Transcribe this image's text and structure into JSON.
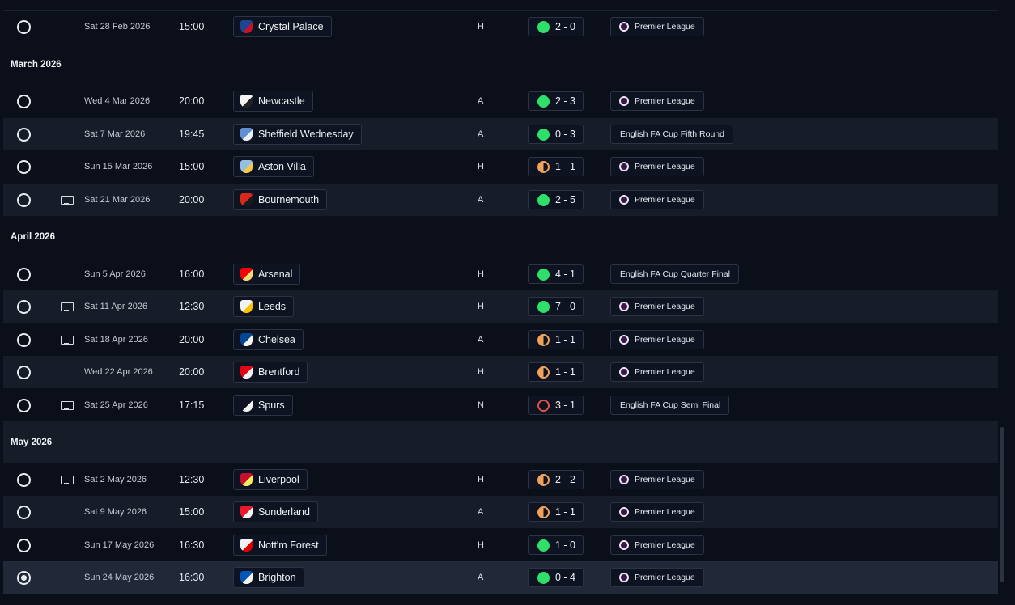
{
  "months": [
    {
      "title": "",
      "matches": [
        {
          "selected": false,
          "tv": false,
          "date": "Sat 28 Feb 2026",
          "time": "15:00",
          "opponent": "Crystal Palace",
          "crest": [
            "#1b458f",
            "#c4122e"
          ],
          "venue": "H",
          "outcome": "win",
          "score": "2 - 0",
          "competition": "Premier League",
          "pl": true
        }
      ]
    },
    {
      "title": "March 2026",
      "matches": [
        {
          "selected": false,
          "tv": false,
          "date": "Wed 4 Mar 2026",
          "time": "20:00",
          "opponent": "Newcastle",
          "crest": [
            "#f4f4f4",
            "#222222"
          ],
          "venue": "A",
          "outcome": "win",
          "score": "2 - 3",
          "competition": "Premier League",
          "pl": true
        },
        {
          "selected": false,
          "tv": false,
          "date": "Sat 7 Mar 2026",
          "time": "19:45",
          "opponent": "Sheffield Wednesday",
          "crest": [
            "#5f8fd0",
            "#e9edf5"
          ],
          "venue": "A",
          "outcome": "win",
          "score": "0 - 3",
          "competition": "English FA Cup Fifth Round",
          "pl": false
        },
        {
          "selected": false,
          "tv": false,
          "date": "Sun 15 Mar 2026",
          "time": "15:00",
          "opponent": "Aston Villa",
          "crest": [
            "#95bfe5",
            "#f2c94c"
          ],
          "venue": "H",
          "outcome": "draw",
          "score": "1 - 1",
          "competition": "Premier League",
          "pl": true
        },
        {
          "selected": false,
          "tv": true,
          "date": "Sat 21 Mar 2026",
          "time": "20:00",
          "opponent": "Bournemouth",
          "crest": [
            "#da291c",
            "#1a1a1a"
          ],
          "venue": "A",
          "outcome": "win",
          "score": "2 - 5",
          "competition": "Premier League",
          "pl": true
        }
      ]
    },
    {
      "title": "April 2026",
      "matches": [
        {
          "selected": false,
          "tv": false,
          "date": "Sun 5 Apr 2026",
          "time": "16:00",
          "opponent": "Arsenal",
          "crest": [
            "#ef0107",
            "#f6d87a"
          ],
          "venue": "H",
          "outcome": "win",
          "score": "4 - 1",
          "competition": "English FA Cup Quarter Final",
          "pl": false
        },
        {
          "selected": false,
          "tv": true,
          "date": "Sat 11 Apr 2026",
          "time": "12:30",
          "opponent": "Leeds",
          "crest": [
            "#f3f3f3",
            "#f7c400"
          ],
          "venue": "H",
          "outcome": "win",
          "score": "7 - 0",
          "competition": "Premier League",
          "pl": true
        },
        {
          "selected": false,
          "tv": true,
          "date": "Sat 18 Apr 2026",
          "time": "20:00",
          "opponent": "Chelsea",
          "crest": [
            "#034694",
            "#f5f5f5"
          ],
          "venue": "A",
          "outcome": "draw",
          "score": "1 - 1",
          "competition": "Premier League",
          "pl": true
        },
        {
          "selected": false,
          "tv": false,
          "date": "Wed 22 Apr 2026",
          "time": "20:00",
          "opponent": "Brentford",
          "crest": [
            "#e30613",
            "#f4f4f4"
          ],
          "venue": "H",
          "outcome": "draw",
          "score": "1 - 1",
          "competition": "Premier League",
          "pl": true
        },
        {
          "selected": false,
          "tv": true,
          "date": "Sat 25 Apr 2026",
          "time": "17:15",
          "opponent": "Spurs",
          "crest": [
            "#0d1320",
            "#f2f2f2"
          ],
          "venue": "N",
          "outcome": "loss",
          "score": "3 - 1",
          "competition": "English FA Cup Semi Final",
          "pl": false
        }
      ]
    },
    {
      "title": "May 2026",
      "matches": [
        {
          "selected": false,
          "tv": true,
          "date": "Sat 2 May 2026",
          "time": "12:30",
          "opponent": "Liverpool",
          "crest": [
            "#c8102e",
            "#f6eb61"
          ],
          "venue": "H",
          "outcome": "draw",
          "score": "2 - 2",
          "competition": "Premier League",
          "pl": true
        },
        {
          "selected": false,
          "tv": false,
          "date": "Sat 9 May 2026",
          "time": "15:00",
          "opponent": "Sunderland",
          "crest": [
            "#eb172b",
            "#f2f2f2"
          ],
          "venue": "A",
          "outcome": "draw",
          "score": "1 - 1",
          "competition": "Premier League",
          "pl": true
        },
        {
          "selected": false,
          "tv": false,
          "date": "Sun 17 May 2026",
          "time": "16:30",
          "opponent": "Nott'm Forest",
          "crest": [
            "#f2f2f2",
            "#dd0000"
          ],
          "venue": "H",
          "outcome": "win",
          "score": "1 - 0",
          "competition": "Premier League",
          "pl": true
        },
        {
          "selected": true,
          "tv": false,
          "date": "Sun 24 May 2026",
          "time": "16:30",
          "opponent": "Brighton",
          "crest": [
            "#0057b8",
            "#f4f4f4"
          ],
          "venue": "A",
          "outcome": "win",
          "score": "0 - 4",
          "competition": "Premier League",
          "pl": true
        }
      ]
    }
  ]
}
